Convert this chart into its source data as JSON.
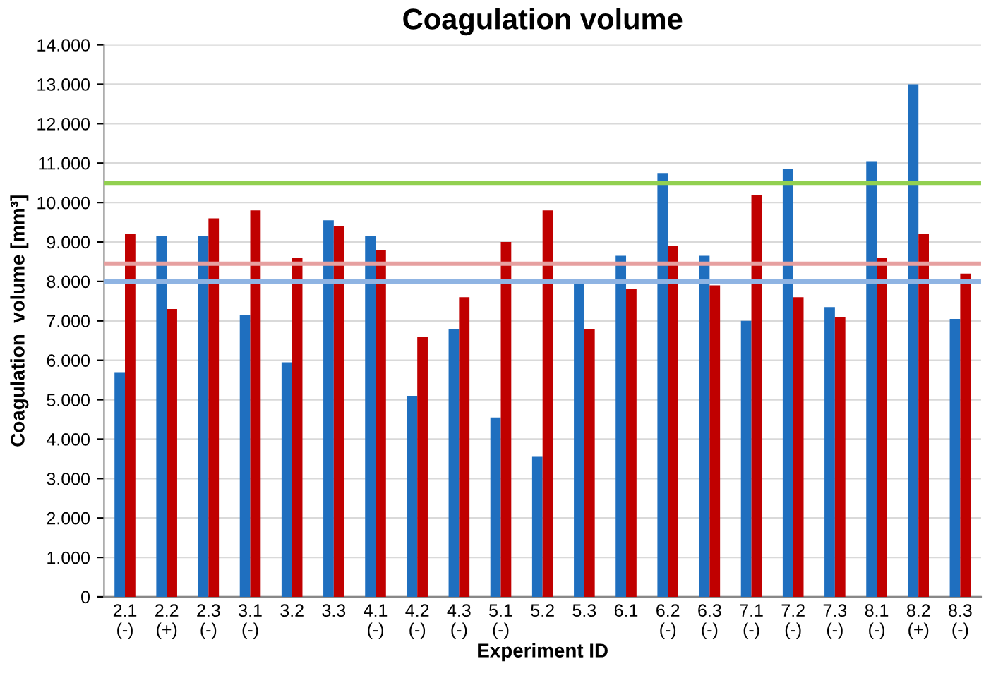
{
  "chart_data": {
    "type": "bar",
    "title": "Coagulation volume",
    "xlabel": "Experiment ID",
    "ylabel": "Coagulation  volume [mm³]",
    "categories": [
      "2.1\n(-)",
      "2.2\n(+)",
      "2.3\n(-)",
      "3.1\n(-)",
      "3.2",
      "3.3",
      "4.1\n(-)",
      "4.2\n(-)",
      "4.3\n(-)",
      "5.1\n(-)",
      "5.2",
      "5.3",
      "6.1",
      "6.2\n(-)",
      "6.3\n(-)",
      "7.1\n(-)",
      "7.2\n(-)",
      "7.3\n(-)",
      "8.1\n(-)",
      "8.2\n(+)",
      "8.3\n(-)"
    ],
    "series": [
      {
        "color": "#1f6fbf",
        "values": [
          5.7,
          9.15,
          9.15,
          7.15,
          5.95,
          9.55,
          9.15,
          5.1,
          6.8,
          4.55,
          3.55,
          8.05,
          8.65,
          10.75,
          8.65,
          7.0,
          10.85,
          7.35,
          11.05,
          13.0,
          7.05
        ]
      },
      {
        "color": "#c00000",
        "values": [
          9.2,
          7.3,
          9.6,
          9.8,
          8.6,
          9.4,
          8.8,
          6.6,
          7.6,
          9.0,
          9.8,
          6.8,
          7.8,
          8.9,
          7.9,
          10.2,
          7.6,
          7.1,
          8.6,
          9.2,
          8.2
        ]
      }
    ],
    "ref_lines": [
      {
        "axis": "y",
        "value": 10.5,
        "color": "#92d050"
      },
      {
        "axis": "y",
        "value": 8.45,
        "color": "#e6a0a0"
      },
      {
        "axis": "y",
        "value": 8.0,
        "color": "#8fb4e3"
      }
    ],
    "ylim": [
      0,
      14
    ],
    "yticks": [
      0,
      {
        "value": 1,
        "label": "1.000"
      },
      {
        "value": 2,
        "label": "2.000"
      },
      {
        "value": 3,
        "label": "3.000"
      },
      {
        "value": 4,
        "label": "4.000"
      },
      {
        "value": 5,
        "label": "5.000"
      },
      {
        "value": 6,
        "label": "6.000"
      },
      {
        "value": 7,
        "label": "7.000"
      },
      {
        "value": 8,
        "label": "8.000"
      },
      {
        "value": 9,
        "label": "9.000"
      },
      {
        "value": 10,
        "label": "10.000"
      },
      {
        "value": 11,
        "label": "11.000"
      },
      {
        "value": 12,
        "label": "12.000"
      },
      {
        "value": 13,
        "label": "13.000"
      },
      {
        "value": 14,
        "label": "14.000"
      }
    ],
    "grid": "y"
  }
}
